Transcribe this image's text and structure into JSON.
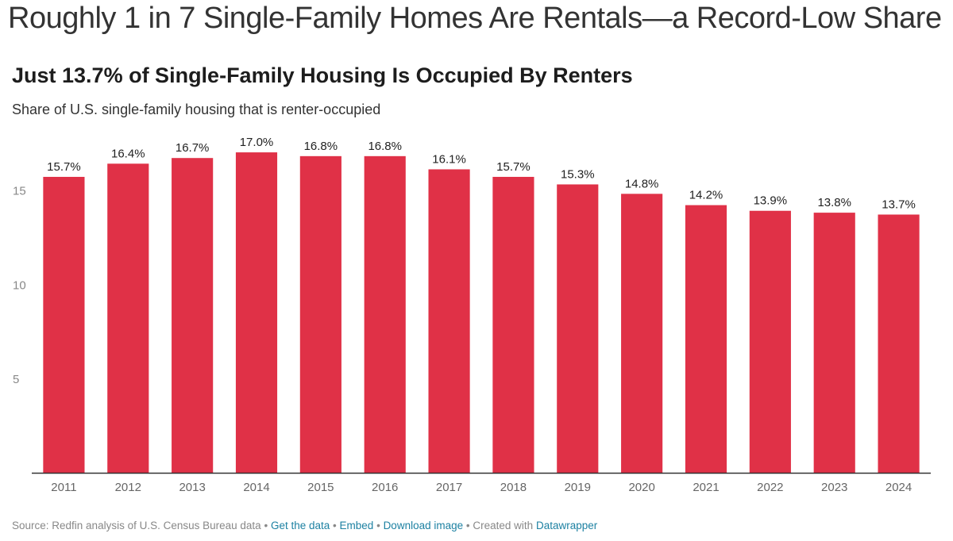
{
  "headline": "Roughly 1 in 7 Single-Family Homes Are Rentals—a Record-Low Share",
  "chart_data": {
    "type": "bar",
    "title": "Just 13.7% of Single-Family Housing Is Occupied By Renters",
    "subtitle": "Share of U.S. single-family housing that is renter-occupied",
    "categories": [
      "2011",
      "2012",
      "2013",
      "2014",
      "2015",
      "2016",
      "2017",
      "2018",
      "2019",
      "2020",
      "2021",
      "2022",
      "2023",
      "2024"
    ],
    "values": [
      15.7,
      16.4,
      16.7,
      17.0,
      16.8,
      16.8,
      16.1,
      15.7,
      15.3,
      14.8,
      14.2,
      13.9,
      13.8,
      13.7
    ],
    "value_labels": [
      "15.7%",
      "16.4%",
      "16.7%",
      "17.0%",
      "16.8%",
      "16.8%",
      "16.1%",
      "15.7%",
      "15.3%",
      "14.8%",
      "14.2%",
      "13.9%",
      "13.8%",
      "13.7%"
    ],
    "yticks": [
      5,
      10,
      15
    ],
    "ylim": [
      0,
      18.35
    ],
    "grid": false,
    "bar_color": "#e03147"
  },
  "footer": {
    "source": "Source: Redfin analysis of U.S. Census Bureau data",
    "sep": "•",
    "get_data": "Get the data",
    "embed": "Embed",
    "download": "Download image",
    "created_with": "Created with",
    "datawrapper": "Datawrapper"
  }
}
